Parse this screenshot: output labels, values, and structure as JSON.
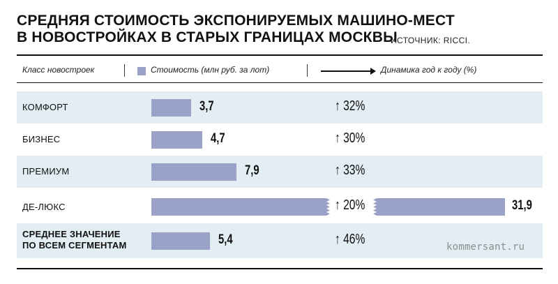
{
  "title_line1": "СРЕДНЯЯ СТОИМОСТЬ ЭКСПОНИРУЕМЫХ МАШИНО-МЕСТ",
  "title_line2": "В НОВОСТРОЙКАХ В СТАРЫХ ГРАНИЦАХ МОСКВЫ",
  "source": "ИСТОЧНИК: RICCI.",
  "header": {
    "class": "Класс новостроек",
    "cost": "Стоимость (млн руб. за лот)",
    "dynamics": "Динамика год к году (%)"
  },
  "watermark": "kommersant.ru",
  "colors": {
    "bar": "#9aa3c7",
    "row_shade": "#e3edf4",
    "text": "#111111"
  },
  "chart_data": {
    "type": "bar",
    "orientation": "horizontal",
    "categories": [
      "КОМФОРТ",
      "БИЗНЕС",
      "ПРЕМИУМ",
      "ДЕ-ЛЮКС",
      "СРЕДНЕЕ ЗНАЧЕНИЕ ПО ВСЕМ СЕГМЕНТАМ"
    ],
    "category_lines": [
      [
        "КОМФОРТ"
      ],
      [
        "БИЗНЕС"
      ],
      [
        "ПРЕМИУМ"
      ],
      [
        "ДЕ-ЛЮКС"
      ],
      [
        "СРЕДНЕЕ ЗНАЧЕНИЕ",
        "ПО ВСЕМ СЕГМЕНТАМ"
      ]
    ],
    "values": [
      3.7,
      4.7,
      7.9,
      31.9,
      5.4
    ],
    "value_labels": [
      "3,7",
      "4,7",
      "7,9",
      "31,9",
      "5,4"
    ],
    "dynamics": [
      "↑ 32%",
      "↑ 30%",
      "↑ 33%",
      "↑ 20%",
      "↑ 46%"
    ],
    "broken_axis_category": "ДЕ-ЛЮКС",
    "shaded_rows": [
      0,
      2,
      4
    ],
    "bold_rows": [
      4
    ]
  }
}
